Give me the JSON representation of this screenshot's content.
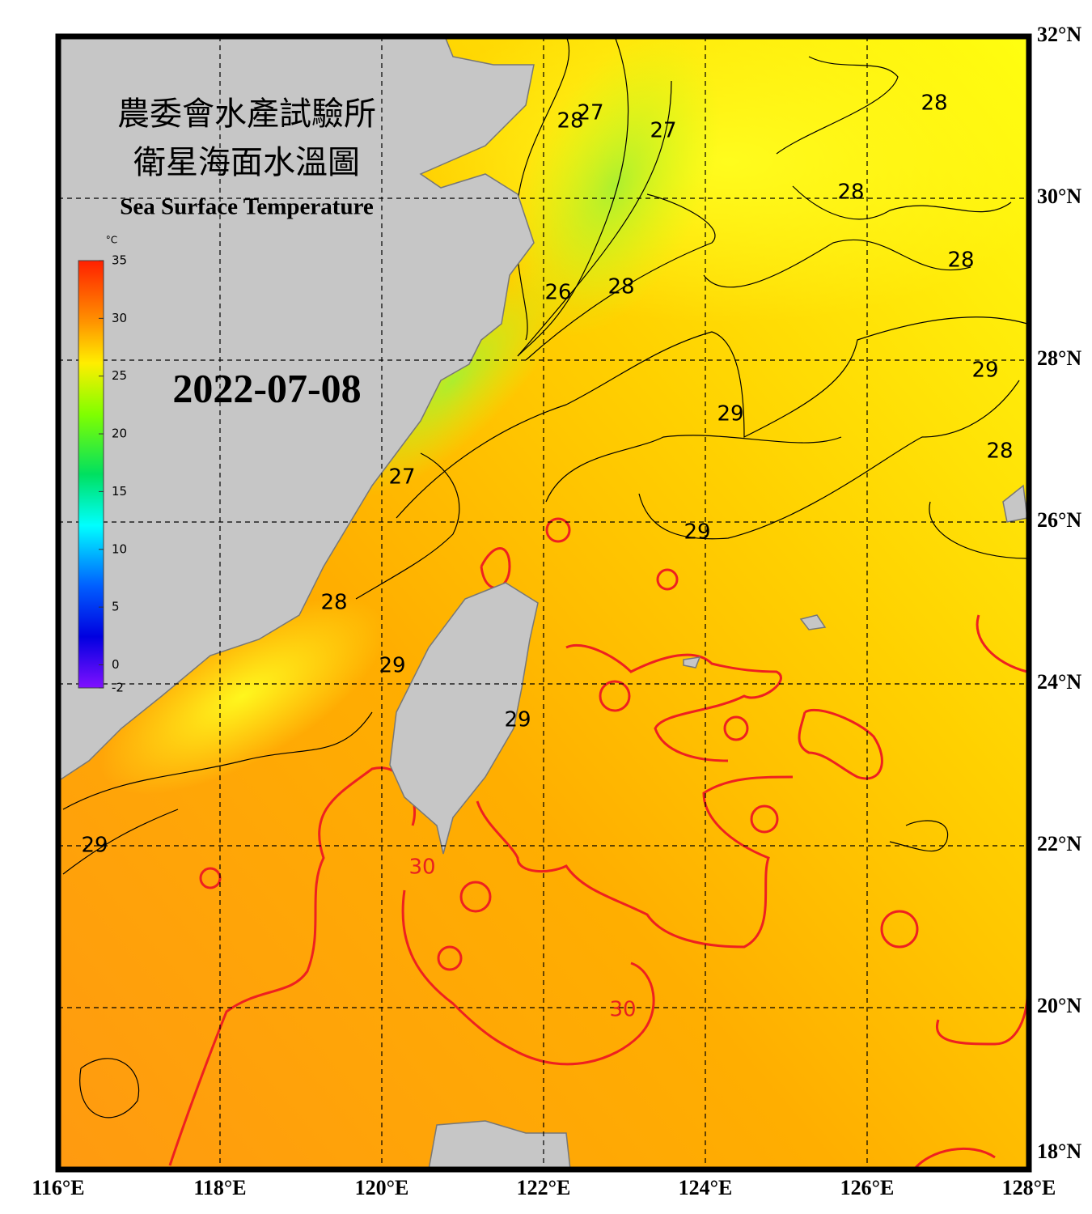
{
  "map": {
    "title_lines": [
      "農委會水產試驗所",
      "衛星海面水溫圖"
    ],
    "subtitle": "Sea Surface Temperature",
    "date": "2022-07-08",
    "xlim": [
      116,
      128
    ],
    "ylim": [
      18,
      32
    ],
    "xticks": [
      {
        "value": 116,
        "label": "116°E"
      },
      {
        "value": 118,
        "label": "118°E"
      },
      {
        "value": 120,
        "label": "120°E"
      },
      {
        "value": 122,
        "label": "122°E"
      },
      {
        "value": 124,
        "label": "124°E"
      },
      {
        "value": 126,
        "label": "126°E"
      },
      {
        "value": 128,
        "label": "128°E"
      }
    ],
    "yticks": [
      {
        "value": 18,
        "label": "18°N"
      },
      {
        "value": 20,
        "label": "20°N"
      },
      {
        "value": 22,
        "label": "22°N"
      },
      {
        "value": 24,
        "label": "24°N"
      },
      {
        "value": 26,
        "label": "26°N"
      },
      {
        "value": 28,
        "label": "28°N"
      },
      {
        "value": 30,
        "label": "30°N"
      },
      {
        "value": 32,
        "label": "32°N"
      }
    ],
    "grid": true,
    "colorbar": {
      "unit": "°C",
      "range": [
        -2,
        35
      ],
      "ticks": [
        35,
        30,
        25,
        20,
        15,
        10,
        5,
        0,
        -2
      ]
    },
    "contour_labels": [
      {
        "value": 28,
        "lon": 126.83,
        "lat": 31.17,
        "color": "#000000"
      },
      {
        "value": 28,
        "lon": 125.8,
        "lat": 30.07,
        "color": "#000000"
      },
      {
        "value": 28,
        "lon": 127.16,
        "lat": 29.23,
        "color": "#000000"
      },
      {
        "value": 27,
        "lon": 123.48,
        "lat": 30.83,
        "color": "#000000"
      },
      {
        "value": 28,
        "lon": 122.33,
        "lat": 30.95,
        "color": "#000000"
      },
      {
        "value": 27,
        "lon": 122.58,
        "lat": 31.05,
        "color": "#000000"
      },
      {
        "value": 26,
        "lon": 122.18,
        "lat": 28.83,
        "color": "#000000"
      },
      {
        "value": 28,
        "lon": 122.96,
        "lat": 28.9,
        "color": "#000000"
      },
      {
        "value": 29,
        "lon": 124.31,
        "lat": 27.33,
        "color": "#000000"
      },
      {
        "value": 29,
        "lon": 127.46,
        "lat": 27.87,
        "color": "#000000"
      },
      {
        "value": 28,
        "lon": 127.64,
        "lat": 26.87,
        "color": "#000000"
      },
      {
        "value": 27,
        "lon": 120.25,
        "lat": 26.55,
        "color": "#000000"
      },
      {
        "value": 29,
        "lon": 123.9,
        "lat": 25.87,
        "color": "#000000"
      },
      {
        "value": 28,
        "lon": 119.41,
        "lat": 25.0,
        "color": "#000000"
      },
      {
        "value": 29,
        "lon": 120.13,
        "lat": 24.22,
        "color": "#000000"
      },
      {
        "value": 29,
        "lon": 121.68,
        "lat": 23.55,
        "color": "#000000"
      },
      {
        "value": 29,
        "lon": 116.45,
        "lat": 22.0,
        "color": "#000000"
      },
      {
        "value": 30,
        "lon": 120.5,
        "lat": 21.73,
        "color": "#e82020"
      },
      {
        "value": 30,
        "lon": 122.98,
        "lat": 19.97,
        "color": "#e82020"
      }
    ]
  }
}
